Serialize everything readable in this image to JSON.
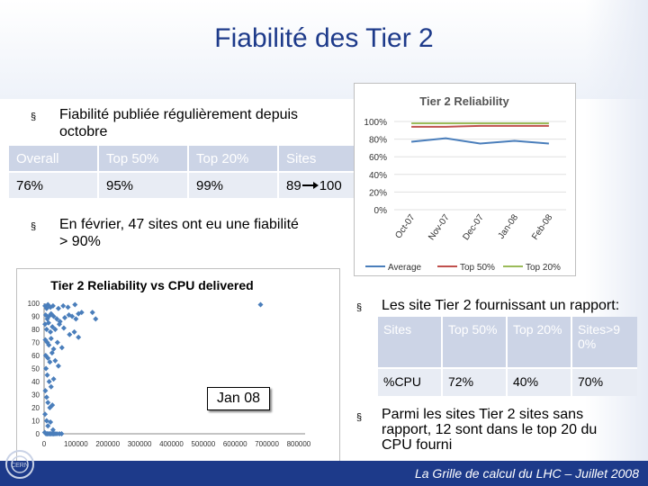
{
  "title": "Fiabilité des Tier 2",
  "bullets": [
    "Fiabilité publiée régulièrement depuis",
    "octobre",
    "En février, 47 sites ont eu une fiabilité",
    "> 90%",
    "Les site Tier 2 fournissant un rapport:",
    "Parmi les sites Tier 2 sites sans",
    "rapport, 12 sont dans le top 20 du",
    "CPU fourni"
  ],
  "bullet_marker": "§",
  "table1": {
    "headers": [
      "Overall",
      "Top 50%",
      "Top 20%",
      "Sites"
    ],
    "row": [
      "76%",
      "95%",
      "99%",
      "89",
      "100"
    ]
  },
  "table2": {
    "headers": [
      "Sites",
      "Top 50%",
      "Top 20%",
      "Sites>9 0%"
    ],
    "row": [
      "%CPU",
      "72%",
      "40%",
      "70%"
    ]
  },
  "callout": "Jan 08",
  "footer": "La Grille de calcul du LHC – Juillet 2008",
  "logo_text": "CERN",
  "colors": {
    "title": "#1d3a8a",
    "average": "#4a7ebb",
    "top50": "#c0504d",
    "top20": "#9bbb59",
    "scatter": "#4a7ebb",
    "footer": "#1d3a8a"
  },
  "chart_data": [
    {
      "type": "line",
      "title": "Tier 2 Reliability",
      "categories": [
        "Oct-07",
        "Nov-07",
        "Dec-07",
        "Jan-08",
        "Feb-08"
      ],
      "yticks": [
        "0%",
        "20%",
        "40%",
        "60%",
        "80%",
        "100%"
      ],
      "ylim": [
        0,
        100
      ],
      "legend": "bottom",
      "series": [
        {
          "name": "Average",
          "values": [
            77,
            81,
            75,
            78,
            75
          ]
        },
        {
          "name": "Top 50%",
          "values": [
            94,
            94,
            95,
            95,
            95
          ]
        },
        {
          "name": "Top 20%",
          "values": [
            98,
            98,
            98,
            98,
            98
          ]
        }
      ]
    },
    {
      "type": "scatter",
      "title": "Tier 2 Reliability vs CPU delivered",
      "xticks": [
        "0",
        "100000",
        "200000",
        "300000",
        "400000",
        "500000",
        "600000",
        "700000",
        "800000"
      ],
      "yticks": [
        "0",
        "10",
        "20",
        "30",
        "40",
        "50",
        "60",
        "70",
        "80",
        "90",
        "100"
      ],
      "xlim": [
        0,
        820000
      ],
      "ylim": [
        0,
        100
      ],
      "points": [
        [
          3000,
          98
        ],
        [
          8000,
          96
        ],
        [
          12000,
          99
        ],
        [
          20000,
          97
        ],
        [
          28000,
          98
        ],
        [
          45000,
          96
        ],
        [
          60000,
          98
        ],
        [
          75000,
          97
        ],
        [
          97000,
          99
        ],
        [
          118000,
          93
        ],
        [
          152000,
          93
        ],
        [
          162000,
          88
        ],
        [
          680000,
          99
        ],
        [
          5000,
          91
        ],
        [
          10000,
          88
        ],
        [
          15000,
          90
        ],
        [
          22000,
          92
        ],
        [
          30000,
          90
        ],
        [
          40000,
          88
        ],
        [
          50000,
          86
        ],
        [
          65000,
          89
        ],
        [
          78000,
          91
        ],
        [
          88000,
          90
        ],
        [
          100000,
          88
        ],
        [
          108000,
          92
        ],
        [
          3000,
          84
        ],
        [
          8000,
          80
        ],
        [
          14000,
          85
        ],
        [
          20000,
          78
        ],
        [
          26000,
          82
        ],
        [
          35000,
          80
        ],
        [
          48000,
          84
        ],
        [
          62000,
          81
        ],
        [
          80000,
          76
        ],
        [
          95000,
          78
        ],
        [
          108000,
          74
        ],
        [
          4000,
          72
        ],
        [
          10000,
          70
        ],
        [
          15000,
          68
        ],
        [
          22000,
          73
        ],
        [
          30000,
          65
        ],
        [
          42000,
          70
        ],
        [
          56000,
          66
        ],
        [
          5000,
          60
        ],
        [
          12000,
          58
        ],
        [
          18000,
          55
        ],
        [
          25000,
          62
        ],
        [
          35000,
          56
        ],
        [
          45000,
          52
        ],
        [
          6000,
          50
        ],
        [
          10000,
          45
        ],
        [
          16000,
          40
        ],
        [
          22000,
          36
        ],
        [
          30000,
          42
        ],
        [
          4000,
          33
        ],
        [
          8000,
          28
        ],
        [
          12000,
          24
        ],
        [
          18000,
          20
        ],
        [
          26000,
          22
        ],
        [
          3000,
          15
        ],
        [
          8000,
          10
        ],
        [
          12000,
          6
        ],
        [
          20000,
          9
        ],
        [
          28000,
          3
        ],
        [
          2000,
          1
        ],
        [
          6000,
          0
        ],
        [
          10000,
          0
        ],
        [
          14000,
          0
        ],
        [
          18000,
          0
        ],
        [
          22000,
          0
        ],
        [
          26000,
          0
        ],
        [
          30000,
          0
        ],
        [
          34000,
          0
        ],
        [
          40000,
          0
        ],
        [
          48000,
          0
        ],
        [
          55000,
          0
        ]
      ]
    }
  ]
}
